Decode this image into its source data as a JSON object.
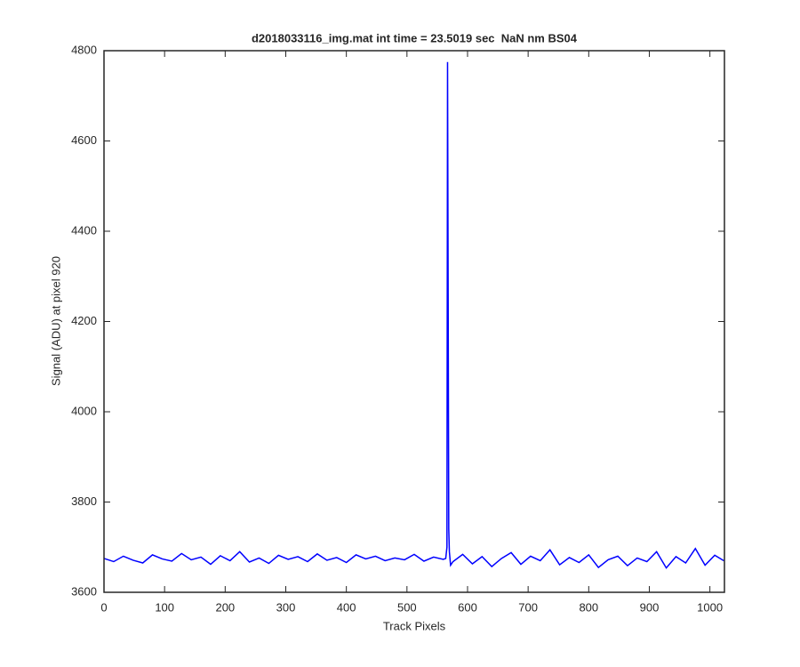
{
  "chart_data": {
    "type": "line",
    "title": "d2018033116_img.mat int time = 23.5019 sec  NaN nm BS04",
    "x_label": "Track Pixels",
    "y_label": "Signal (ADU) at pixel 920",
    "x": [
      0,
      16,
      32,
      48,
      64,
      80,
      96,
      112,
      128,
      144,
      160,
      176,
      192,
      208,
      224,
      240,
      256,
      272,
      288,
      304,
      320,
      336,
      352,
      368,
      384,
      400,
      416,
      432,
      448,
      464,
      480,
      496,
      512,
      528,
      544,
      560,
      564,
      566,
      567,
      568,
      569,
      570,
      572,
      576,
      592,
      608,
      624,
      640,
      656,
      672,
      688,
      704,
      720,
      736,
      752,
      768,
      784,
      800,
      816,
      832,
      848,
      864,
      880,
      896,
      912,
      928,
      944,
      960,
      976,
      992,
      1008,
      1023
    ],
    "series": [
      {
        "color": "#0000ff",
        "values": [
          3675,
          3668,
          3680,
          3671,
          3665,
          3683,
          3674,
          3669,
          3686,
          3672,
          3678,
          3662,
          3681,
          3670,
          3690,
          3667,
          3676,
          3664,
          3682,
          3673,
          3679,
          3668,
          3685,
          3671,
          3677,
          3666,
          3683,
          3674,
          3680,
          3670,
          3676,
          3672,
          3684,
          3669,
          3678,
          3673,
          3675,
          3700,
          4775,
          4260,
          3740,
          3690,
          3660,
          3668,
          3684,
          3663,
          3679,
          3657,
          3675,
          3688,
          3662,
          3680,
          3670,
          3694,
          3661,
          3677,
          3666,
          3683,
          3655,
          3672,
          3680,
          3659,
          3676,
          3668,
          3690,
          3654,
          3679,
          3665,
          3697,
          3660,
          3682,
          3670
        ]
      }
    ],
    "xlim": [
      0,
      1024
    ],
    "ylim": [
      3600,
      4800
    ],
    "xticks": [
      0,
      100,
      200,
      300,
      400,
      500,
      600,
      700,
      800,
      900,
      1000
    ],
    "yticks": [
      3600,
      3800,
      4000,
      4200,
      4400,
      4600,
      4800
    ]
  }
}
